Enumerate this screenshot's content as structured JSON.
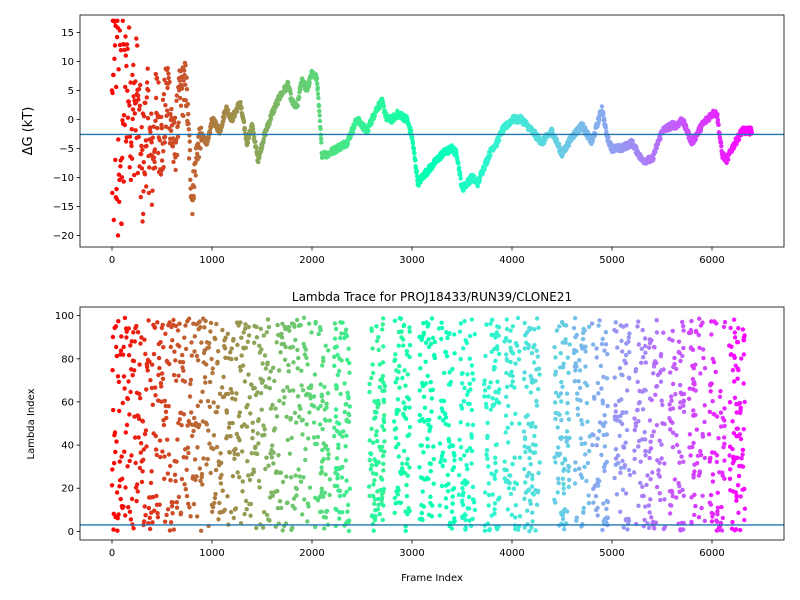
{
  "chart_data": [
    {
      "type": "scatter",
      "title": "",
      "xlabel": "",
      "ylabel": "ΔG (kT)",
      "xlim": [
        -320,
        6720
      ],
      "ylim": [
        -22,
        18
      ],
      "xticks": [
        0,
        1000,
        2000,
        3000,
        4000,
        5000,
        6000
      ],
      "yticks": [
        -20,
        -15,
        -10,
        -5,
        0,
        5,
        10,
        15
      ],
      "hline": -2.6,
      "hline_color": "#1f77b4",
      "colormap": "rainbow",
      "n_frames": 6400,
      "keypoints_x": [
        0,
        40,
        80,
        150,
        200,
        250,
        300,
        350,
        400,
        450,
        500,
        560,
        620,
        680,
        740,
        800,
        850,
        900,
        960,
        1000,
        1080,
        1140,
        1200,
        1280,
        1350,
        1400,
        1460,
        1520,
        1600,
        1680,
        1760,
        1800,
        1850,
        1900,
        1950,
        2000,
        2050,
        2100,
        2160,
        2250,
        2350,
        2450,
        2550,
        2650,
        2700,
        2750,
        2800,
        2860,
        2950,
        3000,
        3060,
        3100,
        3200,
        3300,
        3400,
        3450,
        3500,
        3600,
        3660,
        3700,
        3800,
        3850,
        3900,
        4000,
        4100,
        4200,
        4300,
        4400,
        4500,
        4600,
        4700,
        4800,
        4900,
        4950,
        5000,
        5100,
        5200,
        5300,
        5400,
        5500,
        5600,
        5650,
        5700,
        5800,
        5900,
        6000,
        6050,
        6100,
        6150,
        6200,
        6300,
        6400
      ],
      "keypoints_y": [
        -3,
        2,
        -5,
        8,
        0,
        4,
        -10,
        0,
        -8,
        2,
        -5,
        6,
        -6,
        4,
        6,
        -14,
        -5,
        -3,
        -4,
        0,
        -2,
        2,
        0,
        3,
        -4,
        -1,
        -7,
        -3,
        1,
        4,
        6,
        3,
        2,
        7,
        5,
        8,
        7,
        -6,
        -6,
        -5,
        -4,
        0,
        -2,
        2,
        3,
        0,
        0,
        1,
        0,
        -3,
        -11,
        -10,
        -8,
        -6,
        -5,
        -6,
        -12,
        -10,
        -11,
        -9,
        -5,
        -4,
        -2,
        0,
        0,
        -2,
        -4,
        -2,
        -6,
        -3,
        -1,
        -4,
        2,
        -3,
        -5,
        -5,
        -4,
        -7,
        -7,
        -2,
        -1,
        -1,
        0,
        -4,
        -1,
        1,
        1,
        -6,
        -7,
        -5,
        -2,
        -2
      ],
      "points": {
        "early_scatter_until_x": 900,
        "early_scatter_range": [
          -20,
          17
        ]
      }
    },
    {
      "type": "scatter",
      "title": "Lambda Trace for PROJ18433/RUN39/CLONE21",
      "xlabel": "Frame Index",
      "ylabel": "Lambda Index",
      "xlim": [
        -320,
        6720
      ],
      "ylim": [
        -4,
        104
      ],
      "xticks": [
        0,
        1000,
        2000,
        3000,
        4000,
        5000,
        6000
      ],
      "yticks": [
        0,
        20,
        40,
        60,
        80,
        100
      ],
      "hline": 3,
      "hline_color": "#1f77b4",
      "colormap": "rainbow",
      "n_frames": 6400,
      "lambda_min": 0,
      "lambda_max": 99,
      "column_centers": [
        2100,
        2300,
        2650,
        2900,
        3150,
        3350,
        3550,
        3800,
        4000,
        4200,
        4500,
        4700,
        4880,
        5100,
        5300,
        5450,
        5650,
        5850,
        6050,
        6250
      ]
    }
  ]
}
